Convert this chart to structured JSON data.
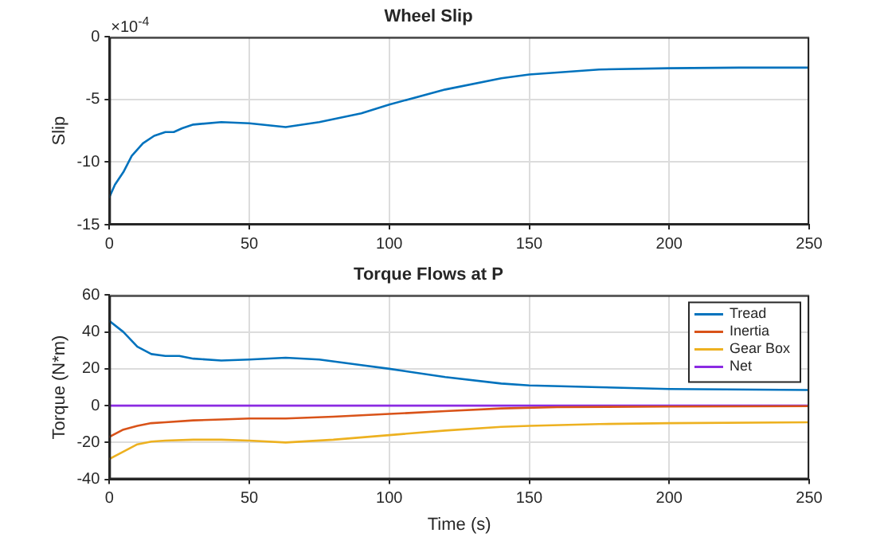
{
  "chart_data": [
    {
      "type": "line",
      "title": "Wheel Slip",
      "ylabel": "Slip",
      "annotations": [
        "×10$^{-4}$"
      ],
      "grid": true,
      "legend": false,
      "marker": "none",
      "line_style": "solid",
      "xlim": [
        0,
        250
      ],
      "xticks": [
        0,
        50,
        100,
        150,
        200,
        250
      ],
      "ylim": [
        -15,
        0
      ],
      "yticks": [
        -15,
        -10,
        -5,
        0
      ],
      "x": [
        0,
        2,
        5,
        8,
        12,
        16,
        20,
        23,
        26,
        30,
        40,
        50,
        63,
        75,
        90,
        100,
        120,
        140,
        150,
        175,
        200,
        225,
        250
      ],
      "series": [
        {
          "color": "#0072bd",
          "values": [
            -12.8,
            -11.8,
            -10.8,
            -9.5,
            -8.5,
            -7.9,
            -7.6,
            -7.6,
            -7.3,
            -7.0,
            -6.8,
            -6.9,
            -7.2,
            -6.8,
            -6.1,
            -5.4,
            -4.2,
            -3.3,
            -3.0,
            -2.6,
            -2.5,
            -2.45,
            -2.45
          ]
        }
      ]
    },
    {
      "type": "line",
      "title": "Torque Flows at P",
      "xlabel": "Time (s)",
      "ylabel": "Torque (N*m)",
      "grid": true,
      "legend": "top right",
      "marker": "none",
      "line_style": "solid",
      "xlim": [
        0,
        250
      ],
      "xticks": [
        0,
        50,
        100,
        150,
        200,
        250
      ],
      "ylim": [
        -40,
        60
      ],
      "yticks": [
        -40,
        -20,
        0,
        20,
        40,
        60
      ],
      "series": [
        {
          "name": "Tread",
          "color": "#0072bd",
          "x": [
            0,
            5,
            10,
            15,
            20,
            25,
            30,
            40,
            50,
            63,
            75,
            90,
            100,
            120,
            140,
            150,
            175,
            200,
            250
          ],
          "values": [
            46,
            40,
            32,
            28,
            27,
            27,
            25.5,
            24.5,
            25,
            26,
            25,
            22,
            20,
            15.5,
            12,
            11,
            10,
            9,
            8.5
          ]
        },
        {
          "name": "Inertia",
          "color": "#d95319",
          "x": [
            0,
            5,
            10,
            15,
            20,
            30,
            40,
            50,
            63,
            80,
            100,
            120,
            140,
            160,
            200,
            250
          ],
          "values": [
            -17,
            -13,
            -11,
            -9.5,
            -9,
            -8,
            -7.5,
            -7,
            -7,
            -6,
            -4.5,
            -3,
            -1.5,
            -0.8,
            -0.5,
            -0.3
          ]
        },
        {
          "name": "Gear Box",
          "color": "#edb120",
          "x": [
            0,
            5,
            10,
            15,
            20,
            30,
            40,
            50,
            63,
            80,
            100,
            120,
            140,
            150,
            175,
            200,
            250
          ],
          "values": [
            -29,
            -25,
            -21,
            -19.5,
            -19,
            -18.5,
            -18.5,
            -19,
            -20,
            -18.5,
            -16,
            -13.5,
            -11.5,
            -11,
            -10,
            -9.5,
            -9
          ]
        },
        {
          "name": "Net",
          "color": "#8b2be2",
          "x": [
            0,
            250
          ],
          "values": [
            0,
            0
          ]
        }
      ]
    }
  ]
}
